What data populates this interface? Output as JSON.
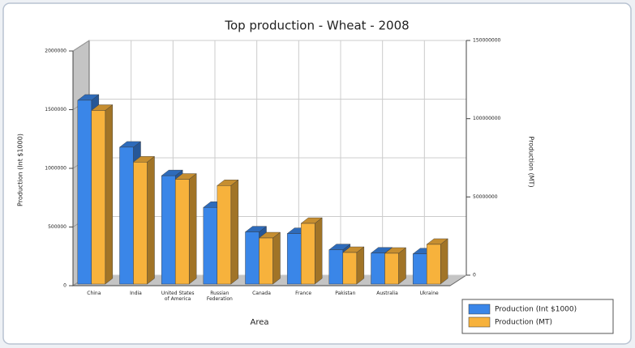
{
  "chart_data": {
    "type": "bar3d",
    "title": "Top production - Wheat - 2008",
    "x_label": "Area",
    "y_label": "Production (Int $1000)",
    "y2_label": "Production (MT)",
    "categories": [
      "China",
      "India",
      "United States of America",
      "Russian Federation",
      "Canada",
      "France",
      "Pakistan",
      "Australia",
      "Ukraine"
    ],
    "series": [
      {
        "name": "Production (Int $1000)",
        "color": "#3a86e8",
        "values": [
          1580000,
          1180000,
          937000,
          667000,
          458000,
          444000,
          306000,
          278000,
          271000
        ]
      },
      {
        "name": "Production (MT)",
        "color": "#f7b23c",
        "axis": "y2",
        "values": [
          112000000,
          79000000,
          68000000,
          64000000,
          30500000,
          39800000,
          21200000,
          20700000,
          26400000
        ]
      }
    ],
    "ylim": [
      0,
      2000000
    ],
    "yticks": [
      0,
      500000,
      1000000,
      1500000,
      2000000
    ],
    "y2lim": [
      0,
      150000000
    ],
    "y2ticks": [
      0,
      50000000,
      100000000,
      150000000
    ],
    "grid": true,
    "legend": "bottom-right"
  }
}
